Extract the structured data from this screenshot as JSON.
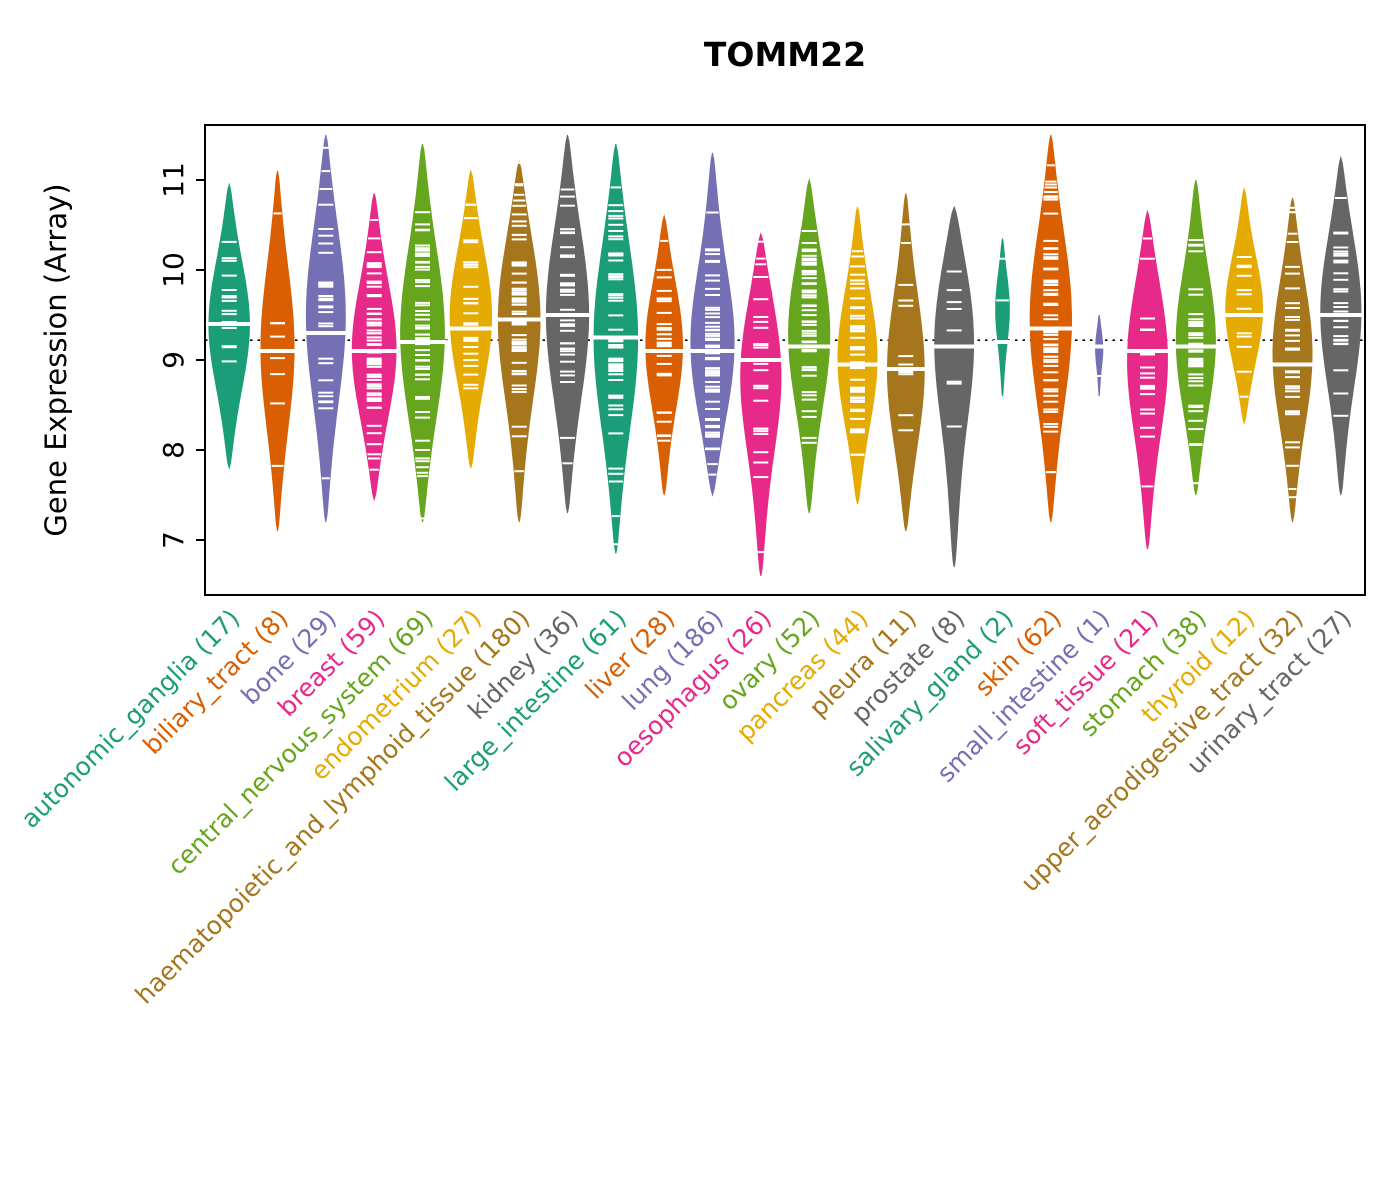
{
  "chart_data": {
    "type": "violin",
    "title": "TOMM22",
    "ylabel": "Gene Expression (Array)",
    "xlabel": "",
    "yticks": [
      7,
      8,
      9,
      10,
      11
    ],
    "ylim": [
      6.4,
      11.6
    ],
    "reference_line": 9.22,
    "grid": false,
    "legend": "none",
    "palette": [
      "#1B9E77",
      "#D95F02",
      "#7570B3",
      "#E7298A",
      "#66A61E",
      "#E6AB02",
      "#A6761D",
      "#666666"
    ],
    "series": [
      {
        "label": "autonomic_ganglia",
        "n": 17,
        "color": "#1B9E77",
        "min": 7.8,
        "max": 10.95,
        "median": 9.4,
        "mode": 9.4,
        "relwidth": 0.88
      },
      {
        "label": "biliary_tract",
        "n": 8,
        "color": "#D95F02",
        "min": 7.1,
        "max": 11.1,
        "median": 9.1,
        "mode": 9.15,
        "relwidth": 0.72
      },
      {
        "label": "bone",
        "n": 29,
        "color": "#7570B3",
        "min": 7.2,
        "max": 11.5,
        "median": 9.3,
        "mode": 9.55,
        "relwidth": 0.85
      },
      {
        "label": "breast",
        "n": 59,
        "color": "#E7298A",
        "min": 7.45,
        "max": 10.85,
        "median": 9.1,
        "mode": 9.1,
        "relwidth": 0.95
      },
      {
        "label": "central_nervous_system",
        "n": 69,
        "color": "#66A61E",
        "min": 7.2,
        "max": 11.4,
        "median": 9.2,
        "mode": 9.3,
        "relwidth": 0.95
      },
      {
        "label": "endometrium",
        "n": 27,
        "color": "#E6AB02",
        "min": 7.8,
        "max": 11.1,
        "median": 9.35,
        "mode": 9.5,
        "relwidth": 0.9
      },
      {
        "label": "haematopoietic_and_lymphoid_tissue",
        "n": 180,
        "color": "#A6761D",
        "min": 7.2,
        "max": 11.2,
        "median": 9.45,
        "mode": 9.55,
        "relwidth": 0.92
      },
      {
        "label": "kidney",
        "n": 36,
        "color": "#666666",
        "min": 7.3,
        "max": 11.5,
        "median": 9.5,
        "mode": 9.55,
        "relwidth": 0.92
      },
      {
        "label": "large_intestine",
        "n": 61,
        "color": "#1B9E77",
        "min": 6.85,
        "max": 11.4,
        "median": 9.25,
        "mode": 9.3,
        "relwidth": 0.95
      },
      {
        "label": "liver",
        "n": 28,
        "color": "#D95F02",
        "min": 7.5,
        "max": 10.6,
        "median": 9.1,
        "mode": 9.2,
        "relwidth": 0.8
      },
      {
        "label": "lung",
        "n": 186,
        "color": "#7570B3",
        "min": 7.5,
        "max": 11.3,
        "median": 9.1,
        "mode": 9.1,
        "relwidth": 0.95
      },
      {
        "label": "oesophagus",
        "n": 26,
        "color": "#E7298A",
        "min": 6.6,
        "max": 10.4,
        "median": 9.0,
        "mode": 8.95,
        "relwidth": 0.9
      },
      {
        "label": "ovary",
        "n": 52,
        "color": "#66A61E",
        "min": 7.3,
        "max": 11.0,
        "median": 9.15,
        "mode": 9.35,
        "relwidth": 0.9
      },
      {
        "label": "pancreas",
        "n": 44,
        "color": "#E6AB02",
        "min": 7.4,
        "max": 10.7,
        "median": 8.95,
        "mode": 9.0,
        "relwidth": 0.85
      },
      {
        "label": "pleura",
        "n": 11,
        "color": "#A6761D",
        "min": 7.1,
        "max": 10.85,
        "median": 8.9,
        "mode": 8.85,
        "relwidth": 0.8
      },
      {
        "label": "prostate",
        "n": 8,
        "color": "#666666",
        "min": 6.7,
        "max": 10.7,
        "median": 9.15,
        "mode": 9.4,
        "relwidth": 0.9
      },
      {
        "label": "salivary_gland",
        "n": 2,
        "color": "#1B9E77",
        "min": 8.6,
        "max": 10.35,
        "median": 9.2,
        "mode": 9.6,
        "relwidth": 0.3
      },
      {
        "label": "skin",
        "n": 62,
        "color": "#D95F02",
        "min": 7.2,
        "max": 11.5,
        "median": 9.35,
        "mode": 9.5,
        "relwidth": 0.9
      },
      {
        "label": "small_intestine",
        "n": 1,
        "color": "#7570B3",
        "min": 8.6,
        "max": 9.5,
        "median": 9.15,
        "mode": 9.15,
        "relwidth": 0.16
      },
      {
        "label": "soft_tissue",
        "n": 21,
        "color": "#E7298A",
        "min": 6.9,
        "max": 10.65,
        "median": 9.1,
        "mode": 9.1,
        "relwidth": 0.88
      },
      {
        "label": "stomach",
        "n": 38,
        "color": "#66A61E",
        "min": 7.5,
        "max": 11.0,
        "median": 9.15,
        "mode": 9.2,
        "relwidth": 0.85
      },
      {
        "label": "thyroid",
        "n": 12,
        "color": "#E6AB02",
        "min": 8.3,
        "max": 10.9,
        "median": 9.5,
        "mode": 9.55,
        "relwidth": 0.8
      },
      {
        "label": "upper_aerodigestive_tract",
        "n": 32,
        "color": "#A6761D",
        "min": 7.2,
        "max": 10.8,
        "median": 8.95,
        "mode": 9.1,
        "relwidth": 0.85
      },
      {
        "label": "urinary_tract",
        "n": 27,
        "color": "#666666",
        "min": 7.5,
        "max": 11.25,
        "median": 9.5,
        "mode": 9.6,
        "relwidth": 0.88
      }
    ]
  }
}
